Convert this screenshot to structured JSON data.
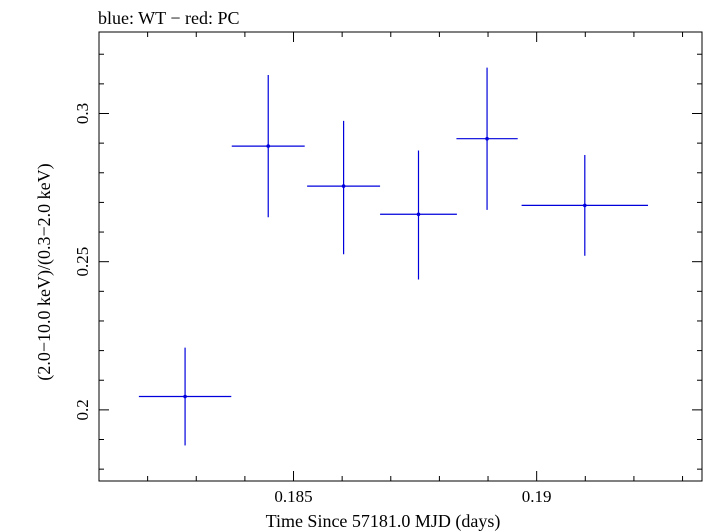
{
  "chart_data": {
    "type": "scatter",
    "title": "blue: WT − red: PC",
    "xlabel": "Time Since 57181.0 MJD (days)",
    "ylabel": "(2.0−10.0 keV)/(0.3−2.0 keV)",
    "xlim": [
      0.181,
      0.1934
    ],
    "ylim": [
      0.176,
      0.3275
    ],
    "x_ticks": [
      0.185,
      0.19
    ],
    "x_tick_labels": [
      "0.185",
      "0.19"
    ],
    "y_ticks": [
      0.2,
      0.25,
      0.3
    ],
    "y_tick_labels": [
      "0.2",
      "0.25",
      "0.3"
    ],
    "grid": false,
    "series": [
      {
        "color": "#0000dd",
        "points": [
          {
            "x": 0.18277,
            "xerr": [
              0.00095,
              0.00095
            ],
            "y": 0.2045,
            "yerr": [
              0.0165,
              0.0165
            ]
          },
          {
            "x": 0.18448,
            "xerr": [
              0.00075,
              0.00075
            ],
            "y": 0.289,
            "yerr": [
              0.024,
              0.024
            ]
          },
          {
            "x": 0.18603,
            "xerr": [
              0.00075,
              0.00075
            ],
            "y": 0.2755,
            "yerr": [
              0.023,
              0.022
            ]
          },
          {
            "x": 0.18757,
            "xerr": [
              0.00079,
              0.00079
            ],
            "y": 0.266,
            "yerr": [
              0.022,
              0.0215
            ]
          },
          {
            "x": 0.18898,
            "xerr": [
              0.00063,
              0.00063
            ],
            "y": 0.2915,
            "yerr": [
              0.024,
              0.024
            ]
          },
          {
            "x": 0.19099,
            "xerr": [
              0.0013,
              0.0013
            ],
            "y": 0.269,
            "yerr": [
              0.017,
              0.017
            ]
          }
        ]
      }
    ]
  }
}
